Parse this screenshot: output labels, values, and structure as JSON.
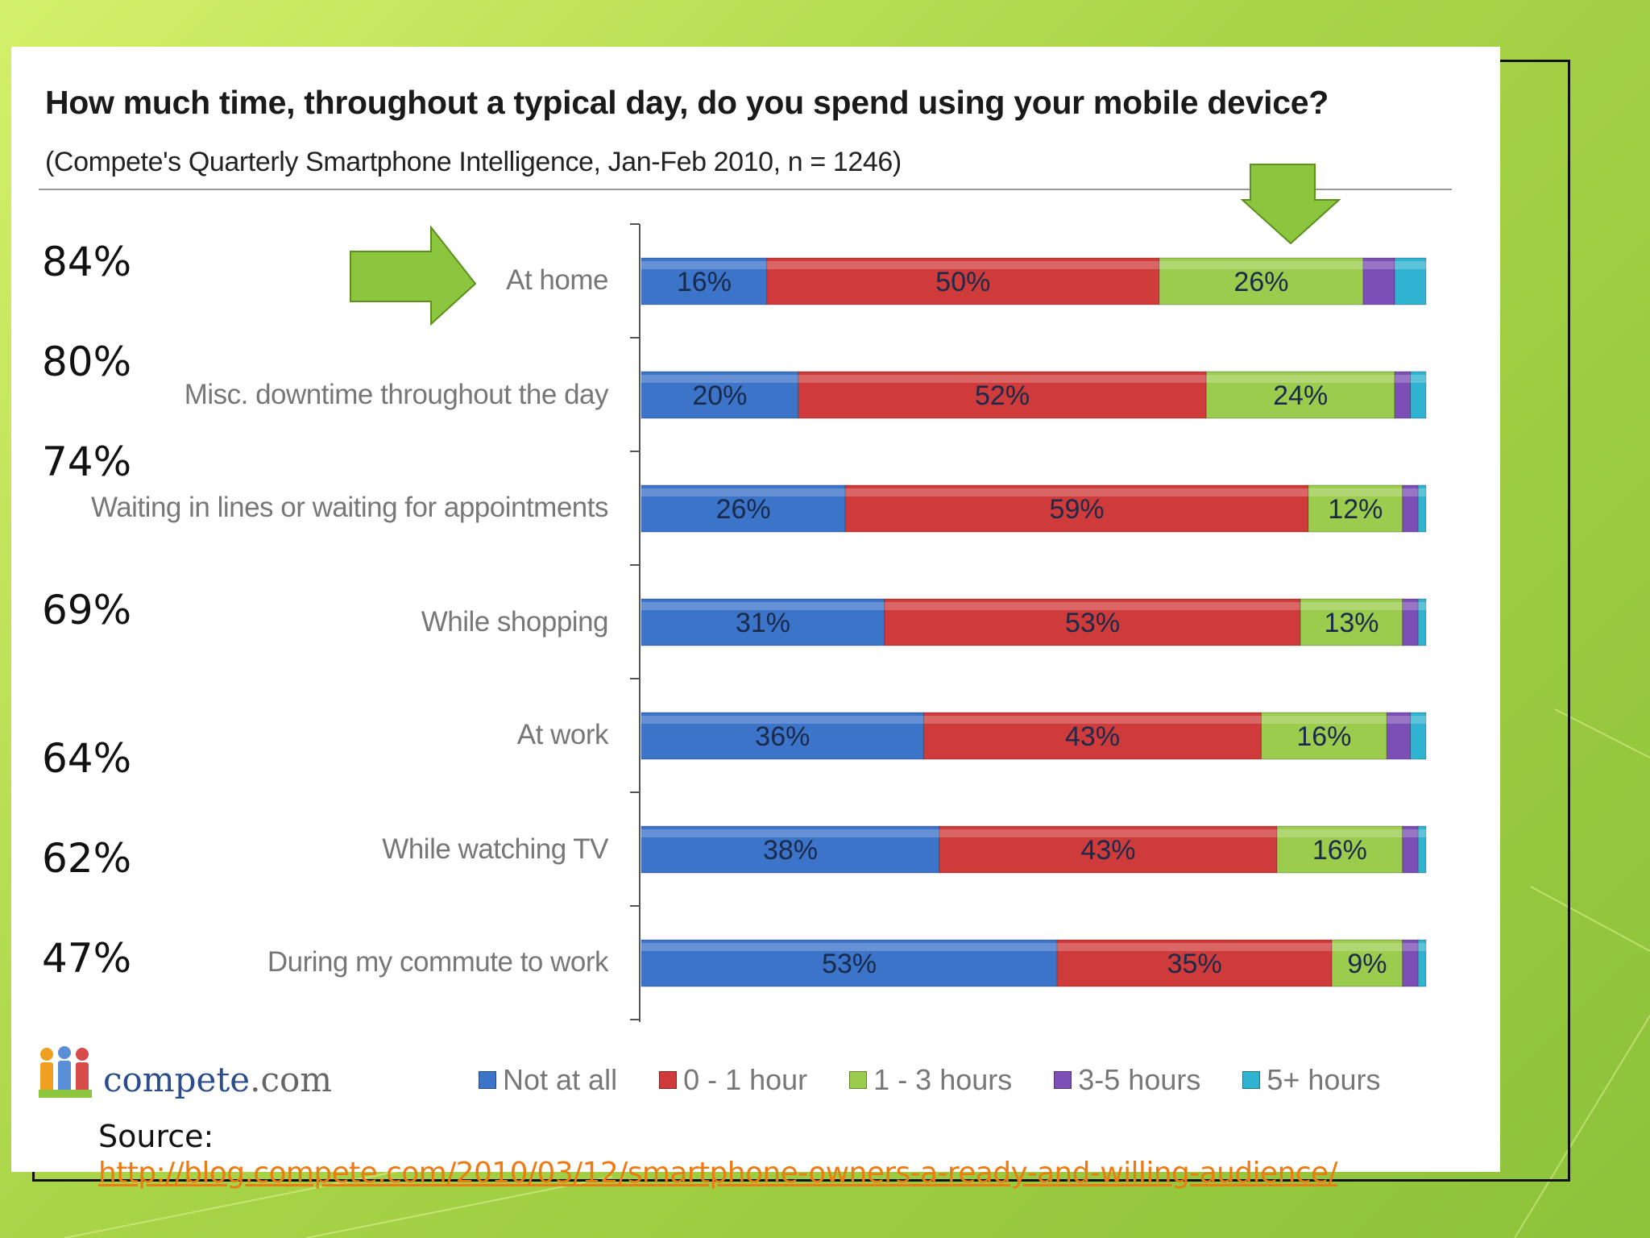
{
  "title": "How much time, throughout a typical day, do you spend using your mobile device?",
  "subtitle": "(Compete's Quarterly Smartphone Intelligence, Jan-Feb 2010, n = 1246)",
  "side_percentages": [
    "84%",
    "80%",
    "74%",
    "69%",
    "64%",
    "62%",
    "47%"
  ],
  "logo": {
    "brand": "compete",
    "suffix": ".com"
  },
  "source": {
    "label": "Source:",
    "link": "http://blog.compete.com/2010/03/12/smartphone-owners-a-ready-and-willing-audience/"
  },
  "colors": {
    "not_at_all": "#3b74c9",
    "zero_one": "#cf3a3a",
    "one_three": "#9ccc4e",
    "three_five": "#7b4fb5",
    "five_plus": "#2fb3d1",
    "side_pct_text": "#111111",
    "link": "#f07a12"
  },
  "chart_data": {
    "type": "bar",
    "orientation": "horizontal",
    "stacked": true,
    "title": "How much time, throughout a typical day, do you spend using your mobile device?",
    "subtitle": "(Compete's Quarterly Smartphone Intelligence, Jan-Feb 2010, n = 1246)",
    "categories": [
      "At home",
      "Misc. downtime throughout the day",
      "Waiting in lines or waiting for appointments",
      "While shopping",
      "At work",
      "While watching  TV",
      "During my commute to work"
    ],
    "series": [
      {
        "name": "Not at all",
        "values": [
          16,
          20,
          26,
          31,
          36,
          38,
          53
        ],
        "labels": [
          "16%",
          "20%",
          "26%",
          "31%",
          "36%",
          "38%",
          "53%"
        ]
      },
      {
        "name": "0 - 1 hour",
        "values": [
          50,
          52,
          59,
          53,
          43,
          43,
          35
        ],
        "labels": [
          "50%",
          "52%",
          "59%",
          "53%",
          "43%",
          "43%",
          "35%"
        ]
      },
      {
        "name": "1 - 3 hours",
        "values": [
          26,
          24,
          12,
          13,
          16,
          16,
          9
        ],
        "labels": [
          "26%",
          "24%",
          "12%",
          "13%",
          "16%",
          "16%",
          "9%"
        ]
      },
      {
        "name": "3-5 hours",
        "values": [
          4,
          2,
          2,
          2,
          3,
          2,
          2
        ],
        "labels": [
          "",
          "",
          "",
          "",
          "",
          "",
          ""
        ]
      },
      {
        "name": "5+ hours",
        "values": [
          4,
          2,
          1,
          1,
          2,
          1,
          1
        ],
        "labels": [
          "",
          "",
          "",
          "",
          "",
          "",
          ""
        ]
      }
    ],
    "xlim": [
      0,
      100
    ],
    "legend_position": "bottom",
    "grid": false
  }
}
